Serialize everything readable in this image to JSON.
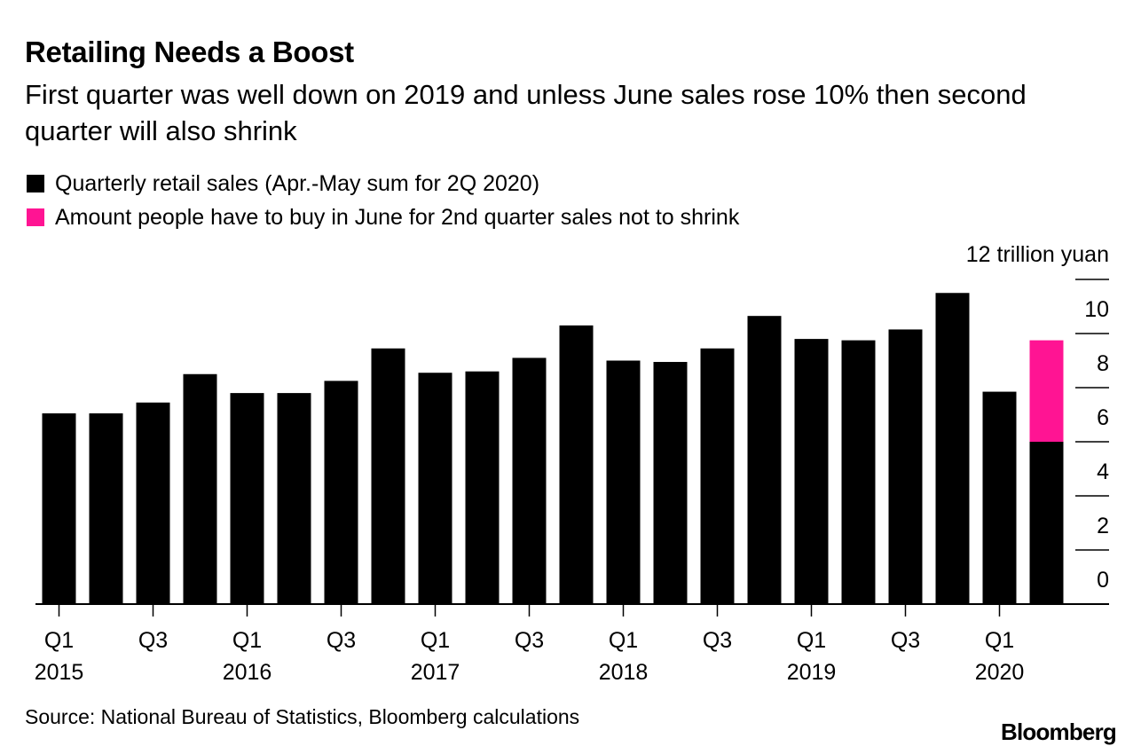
{
  "chart_data": {
    "type": "bar",
    "stacked": true,
    "title": "Retailing Needs a Boost",
    "subtitle": "First quarter was well down on 2019 and unless June sales rose 10% then second quarter will also shrink",
    "y_unit_label": "12 trillion yuan",
    "ylim": [
      0,
      12
    ],
    "y_ticks": [
      0,
      2,
      4,
      6,
      8,
      10
    ],
    "categories": [
      "Q1 2015",
      "Q2 2015",
      "Q3 2015",
      "Q4 2015",
      "Q1 2016",
      "Q2 2016",
      "Q3 2016",
      "Q4 2016",
      "Q1 2017",
      "Q2 2017",
      "Q3 2017",
      "Q4 2017",
      "Q1 2018",
      "Q2 2018",
      "Q3 2018",
      "Q4 2018",
      "Q1 2019",
      "Q2 2019",
      "Q3 2019",
      "Q4 2019",
      "Q1 2020",
      "Q2 2020"
    ],
    "x_tick_labels": [
      {
        "index": 0,
        "quarter": "Q1",
        "year": "2015"
      },
      {
        "index": 2,
        "quarter": "Q3",
        "year": ""
      },
      {
        "index": 4,
        "quarter": "Q1",
        "year": "2016"
      },
      {
        "index": 6,
        "quarter": "Q3",
        "year": ""
      },
      {
        "index": 8,
        "quarter": "Q1",
        "year": "2017"
      },
      {
        "index": 10,
        "quarter": "Q3",
        "year": ""
      },
      {
        "index": 12,
        "quarter": "Q1",
        "year": "2018"
      },
      {
        "index": 14,
        "quarter": "Q3",
        "year": ""
      },
      {
        "index": 16,
        "quarter": "Q1",
        "year": "2019"
      },
      {
        "index": 18,
        "quarter": "Q3",
        "year": ""
      },
      {
        "index": 20,
        "quarter": "Q1",
        "year": "2020"
      }
    ],
    "series": [
      {
        "name": "Quarterly retail sales (Apr.-May sum for 2Q 2020)",
        "color": "#000000",
        "values": [
          7.05,
          7.05,
          7.45,
          8.5,
          7.8,
          7.8,
          8.25,
          9.45,
          8.55,
          8.6,
          9.1,
          10.3,
          9.0,
          8.95,
          9.45,
          10.65,
          9.8,
          9.75,
          10.15,
          11.5,
          7.85,
          6.0
        ]
      },
      {
        "name": "Amount people have to buy in June for 2nd quarter sales not to shrink",
        "color": "#ff1493",
        "values": [
          0,
          0,
          0,
          0,
          0,
          0,
          0,
          0,
          0,
          0,
          0,
          0,
          0,
          0,
          0,
          0,
          0,
          0,
          0,
          0,
          0,
          3.75
        ]
      }
    ]
  },
  "footer": {
    "source": "Source: National Bureau of Statistics, Bloomberg calculations",
    "brand": "Bloomberg"
  }
}
